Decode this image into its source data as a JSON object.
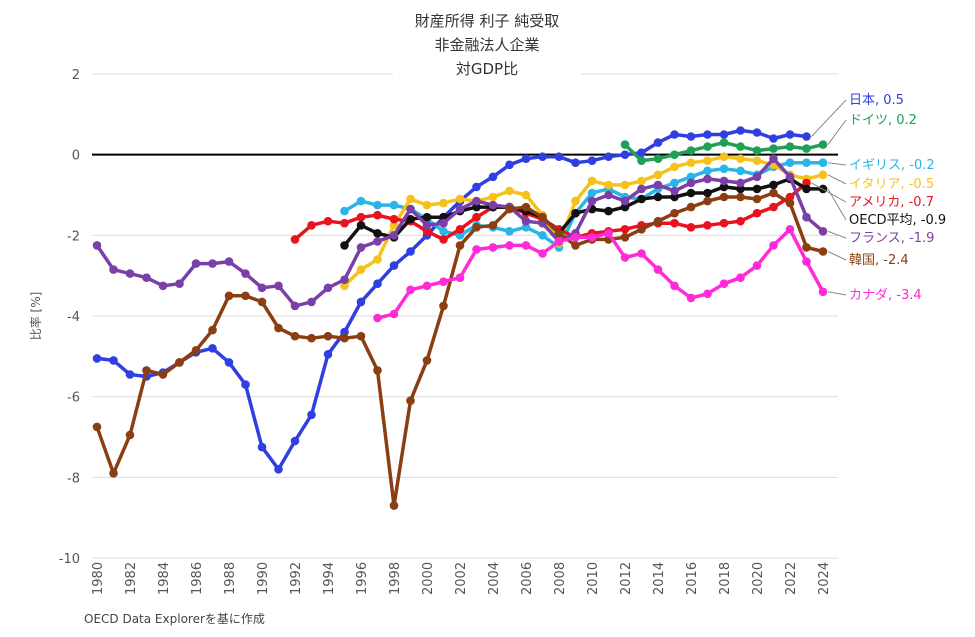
{
  "footer": "OECD Data Explorerを基に作成",
  "chart_data": {
    "type": "line",
    "title": [
      "財産所得 利子 純受取",
      "非金融法人企業",
      "対GDP比"
    ],
    "ylabel": "比率 [%]",
    "xlabel": "",
    "ylim": [
      -10,
      2
    ],
    "yticks": [
      2,
      0,
      -2,
      -4,
      -6,
      -8,
      -10
    ],
    "xlim": [
      1980,
      2024
    ],
    "xticks": [
      1980,
      1982,
      1984,
      1986,
      1988,
      1990,
      1992,
      1994,
      1996,
      1998,
      2000,
      2002,
      2004,
      2006,
      2008,
      2010,
      2012,
      2014,
      2016,
      2018,
      2020,
      2022,
      2024
    ],
    "grid": "horizontal",
    "zero_line": true,
    "series": [
      {
        "name": "日本",
        "label": "日本, 0.5",
        "color": "#2f3fe0",
        "points": [
          [
            1980,
            -5.05
          ],
          [
            1981,
            -5.1
          ],
          [
            1982,
            -5.45
          ],
          [
            1983,
            -5.5
          ],
          [
            1984,
            -5.4
          ],
          [
            1985,
            -5.15
          ],
          [
            1986,
            -4.9
          ],
          [
            1987,
            -4.8
          ],
          [
            1988,
            -5.15
          ],
          [
            1989,
            -5.7
          ],
          [
            1990,
            -7.25
          ],
          [
            1991,
            -7.8
          ],
          [
            1992,
            -7.1
          ],
          [
            1993,
            -6.45
          ],
          [
            1994,
            -4.95
          ],
          [
            1995,
            -4.4
          ],
          [
            1996,
            -3.65
          ],
          [
            1997,
            -3.2
          ],
          [
            1998,
            -2.75
          ],
          [
            1999,
            -2.4
          ],
          [
            2000,
            -2.0
          ],
          [
            2001,
            -1.55
          ],
          [
            2002,
            -1.15
          ],
          [
            2003,
            -0.8
          ],
          [
            2004,
            -0.55
          ],
          [
            2005,
            -0.25
          ],
          [
            2006,
            -0.1
          ],
          [
            2007,
            -0.05
          ],
          [
            2008,
            -0.05
          ],
          [
            2009,
            -0.2
          ],
          [
            2010,
            -0.15
          ],
          [
            2011,
            -0.05
          ],
          [
            2012,
            0.0
          ],
          [
            2013,
            0.05
          ],
          [
            2014,
            0.3
          ],
          [
            2015,
            0.5
          ],
          [
            2016,
            0.45
          ],
          [
            2017,
            0.5
          ],
          [
            2018,
            0.5
          ],
          [
            2019,
            0.6
          ],
          [
            2020,
            0.55
          ],
          [
            2021,
            0.4
          ],
          [
            2022,
            0.5
          ],
          [
            2023,
            0.45
          ]
        ]
      },
      {
        "name": "ドイツ",
        "label": "ドイツ, 0.2",
        "color": "#1fa055",
        "points": [
          [
            2012,
            0.25
          ],
          [
            2013,
            -0.15
          ],
          [
            2014,
            -0.1
          ],
          [
            2015,
            0.0
          ],
          [
            2016,
            0.1
          ],
          [
            2017,
            0.2
          ],
          [
            2018,
            0.3
          ],
          [
            2019,
            0.2
          ],
          [
            2020,
            0.1
          ],
          [
            2021,
            0.15
          ],
          [
            2022,
            0.2
          ],
          [
            2023,
            0.15
          ],
          [
            2024,
            0.25
          ]
        ]
      },
      {
        "name": "イギリス",
        "label": "イギリス, -0.2",
        "color": "#29b5e8",
        "points": [
          [
            1995,
            -1.4
          ],
          [
            1996,
            -1.15
          ],
          [
            1997,
            -1.25
          ],
          [
            1998,
            -1.25
          ],
          [
            1999,
            -1.35
          ],
          [
            2000,
            -1.6
          ],
          [
            2001,
            -1.9
          ],
          [
            2002,
            -2.0
          ],
          [
            2003,
            -1.75
          ],
          [
            2004,
            -1.8
          ],
          [
            2005,
            -1.9
          ],
          [
            2006,
            -1.8
          ],
          [
            2007,
            -2.0
          ],
          [
            2008,
            -2.3
          ],
          [
            2009,
            -1.45
          ],
          [
            2010,
            -0.95
          ],
          [
            2011,
            -0.85
          ],
          [
            2012,
            -1.05
          ],
          [
            2013,
            -1.1
          ],
          [
            2014,
            -0.85
          ],
          [
            2015,
            -0.7
          ],
          [
            2016,
            -0.55
          ],
          [
            2017,
            -0.4
          ],
          [
            2018,
            -0.35
          ],
          [
            2019,
            -0.4
          ],
          [
            2020,
            -0.5
          ],
          [
            2021,
            -0.3
          ],
          [
            2022,
            -0.2
          ],
          [
            2023,
            -0.2
          ],
          [
            2024,
            -0.2
          ]
        ]
      },
      {
        "name": "イタリア",
        "label": "イタリア, -0.5",
        "color": "#f5c21b",
        "points": [
          [
            1995,
            -3.25
          ],
          [
            1996,
            -2.85
          ],
          [
            1997,
            -2.6
          ],
          [
            1998,
            -1.75
          ],
          [
            1999,
            -1.1
          ],
          [
            2000,
            -1.25
          ],
          [
            2001,
            -1.2
          ],
          [
            2002,
            -1.1
          ],
          [
            2003,
            -1.15
          ],
          [
            2004,
            -1.05
          ],
          [
            2005,
            -0.9
          ],
          [
            2006,
            -1.0
          ],
          [
            2007,
            -1.5
          ],
          [
            2008,
            -2.2
          ],
          [
            2009,
            -1.15
          ],
          [
            2010,
            -0.65
          ],
          [
            2011,
            -0.75
          ],
          [
            2012,
            -0.75
          ],
          [
            2013,
            -0.65
          ],
          [
            2014,
            -0.5
          ],
          [
            2015,
            -0.3
          ],
          [
            2016,
            -0.2
          ],
          [
            2017,
            -0.15
          ],
          [
            2018,
            -0.05
          ],
          [
            2019,
            -0.1
          ],
          [
            2020,
            -0.15
          ],
          [
            2021,
            -0.25
          ],
          [
            2022,
            -0.5
          ],
          [
            2023,
            -0.6
          ],
          [
            2024,
            -0.5
          ]
        ]
      },
      {
        "name": "アメリカ",
        "label": "アメリカ, -0.7",
        "color": "#e8131f",
        "points": [
          [
            1992,
            -2.1
          ],
          [
            1993,
            -1.75
          ],
          [
            1994,
            -1.65
          ],
          [
            1995,
            -1.7
          ],
          [
            1996,
            -1.55
          ],
          [
            1997,
            -1.5
          ],
          [
            1998,
            -1.6
          ],
          [
            1999,
            -1.65
          ],
          [
            2000,
            -1.9
          ],
          [
            2001,
            -2.1
          ],
          [
            2002,
            -1.85
          ],
          [
            2003,
            -1.55
          ],
          [
            2004,
            -1.3
          ],
          [
            2005,
            -1.3
          ],
          [
            2006,
            -1.45
          ],
          [
            2007,
            -1.6
          ],
          [
            2008,
            -1.85
          ],
          [
            2009,
            -2.05
          ],
          [
            2010,
            -1.95
          ],
          [
            2011,
            -1.9
          ],
          [
            2012,
            -1.85
          ],
          [
            2013,
            -1.75
          ],
          [
            2014,
            -1.7
          ],
          [
            2015,
            -1.7
          ],
          [
            2016,
            -1.8
          ],
          [
            2017,
            -1.75
          ],
          [
            2018,
            -1.7
          ],
          [
            2019,
            -1.65
          ],
          [
            2020,
            -1.45
          ],
          [
            2021,
            -1.3
          ],
          [
            2022,
            -1.05
          ],
          [
            2023,
            -0.7
          ]
        ]
      },
      {
        "name": "OECD平均",
        "label": "OECD平均, -0.9",
        "color": "#111111",
        "points": [
          [
            1995,
            -2.25
          ],
          [
            1996,
            -1.75
          ],
          [
            1997,
            -1.95
          ],
          [
            1998,
            -2.05
          ],
          [
            1999,
            -1.6
          ],
          [
            2000,
            -1.55
          ],
          [
            2001,
            -1.55
          ],
          [
            2002,
            -1.4
          ],
          [
            2003,
            -1.3
          ],
          [
            2004,
            -1.3
          ],
          [
            2005,
            -1.3
          ],
          [
            2006,
            -1.4
          ],
          [
            2007,
            -1.55
          ],
          [
            2008,
            -1.95
          ],
          [
            2009,
            -1.45
          ],
          [
            2010,
            -1.35
          ],
          [
            2011,
            -1.4
          ],
          [
            2012,
            -1.3
          ],
          [
            2013,
            -1.1
          ],
          [
            2014,
            -1.05
          ],
          [
            2015,
            -1.05
          ],
          [
            2016,
            -0.95
          ],
          [
            2017,
            -0.95
          ],
          [
            2018,
            -0.8
          ],
          [
            2019,
            -0.85
          ],
          [
            2020,
            -0.85
          ],
          [
            2021,
            -0.75
          ],
          [
            2022,
            -0.6
          ],
          [
            2023,
            -0.85
          ],
          [
            2024,
            -0.85
          ]
        ]
      },
      {
        "name": "フランス",
        "label": "フランス, -1.9",
        "color": "#7b3fa8",
        "points": [
          [
            1980,
            -2.25
          ],
          [
            1981,
            -2.85
          ],
          [
            1982,
            -2.95
          ],
          [
            1983,
            -3.05
          ],
          [
            1984,
            -3.25
          ],
          [
            1985,
            -3.2
          ],
          [
            1986,
            -2.7
          ],
          [
            1987,
            -2.7
          ],
          [
            1988,
            -2.65
          ],
          [
            1989,
            -2.95
          ],
          [
            1990,
            -3.3
          ],
          [
            1991,
            -3.25
          ],
          [
            1992,
            -3.75
          ],
          [
            1993,
            -3.65
          ],
          [
            1994,
            -3.3
          ],
          [
            1995,
            -3.1
          ],
          [
            1996,
            -2.3
          ],
          [
            1997,
            -2.15
          ],
          [
            1998,
            -2.0
          ],
          [
            1999,
            -1.35
          ],
          [
            2000,
            -1.75
          ],
          [
            2001,
            -1.7
          ],
          [
            2002,
            -1.35
          ],
          [
            2003,
            -1.15
          ],
          [
            2004,
            -1.25
          ],
          [
            2005,
            -1.3
          ],
          [
            2006,
            -1.65
          ],
          [
            2007,
            -1.7
          ],
          [
            2008,
            -2.15
          ],
          [
            2009,
            -1.95
          ],
          [
            2010,
            -1.15
          ],
          [
            2011,
            -1.0
          ],
          [
            2012,
            -1.15
          ],
          [
            2013,
            -0.85
          ],
          [
            2014,
            -0.75
          ],
          [
            2015,
            -0.9
          ],
          [
            2016,
            -0.7
          ],
          [
            2017,
            -0.6
          ],
          [
            2018,
            -0.65
          ],
          [
            2019,
            -0.7
          ],
          [
            2020,
            -0.55
          ],
          [
            2021,
            -0.1
          ],
          [
            2022,
            -0.55
          ],
          [
            2023,
            -1.55
          ],
          [
            2024,
            -1.9
          ]
        ]
      },
      {
        "name": "韓国",
        "label": "韓国, -2.4",
        "color": "#8b3e12",
        "points": [
          [
            1980,
            -6.75
          ],
          [
            1981,
            -7.9
          ],
          [
            1982,
            -6.95
          ],
          [
            1983,
            -5.35
          ],
          [
            1984,
            -5.45
          ],
          [
            1985,
            -5.15
          ],
          [
            1986,
            -4.85
          ],
          [
            1987,
            -4.35
          ],
          [
            1988,
            -3.5
          ],
          [
            1989,
            -3.5
          ],
          [
            1990,
            -3.65
          ],
          [
            1991,
            -4.3
          ],
          [
            1992,
            -4.5
          ],
          [
            1993,
            -4.55
          ],
          [
            1994,
            -4.5
          ],
          [
            1995,
            -4.55
          ],
          [
            1996,
            -4.5
          ],
          [
            1997,
            -5.35
          ],
          [
            1998,
            -8.7
          ],
          [
            1999,
            -6.1
          ],
          [
            2000,
            -5.1
          ],
          [
            2001,
            -3.75
          ],
          [
            2002,
            -2.25
          ],
          [
            2003,
            -1.8
          ],
          [
            2004,
            -1.75
          ],
          [
            2005,
            -1.35
          ],
          [
            2006,
            -1.3
          ],
          [
            2007,
            -1.55
          ],
          [
            2008,
            -1.95
          ],
          [
            2009,
            -2.25
          ],
          [
            2010,
            -2.1
          ],
          [
            2011,
            -2.1
          ],
          [
            2012,
            -2.05
          ],
          [
            2013,
            -1.85
          ],
          [
            2014,
            -1.65
          ],
          [
            2015,
            -1.45
          ],
          [
            2016,
            -1.3
          ],
          [
            2017,
            -1.15
          ],
          [
            2018,
            -1.05
          ],
          [
            2019,
            -1.05
          ],
          [
            2020,
            -1.1
          ],
          [
            2021,
            -0.95
          ],
          [
            2022,
            -1.2
          ],
          [
            2023,
            -2.3
          ],
          [
            2024,
            -2.4
          ]
        ]
      },
      {
        "name": "カナダ",
        "label": "カナダ, -3.4",
        "color": "#ff2ad8",
        "points": [
          [
            1997,
            -4.05
          ],
          [
            1998,
            -3.95
          ],
          [
            1999,
            -3.35
          ],
          [
            2000,
            -3.25
          ],
          [
            2001,
            -3.15
          ],
          [
            2002,
            -3.05
          ],
          [
            2003,
            -2.35
          ],
          [
            2004,
            -2.3
          ],
          [
            2005,
            -2.25
          ],
          [
            2006,
            -2.25
          ],
          [
            2007,
            -2.45
          ],
          [
            2008,
            -2.15
          ],
          [
            2009,
            -2.05
          ],
          [
            2010,
            -2.05
          ],
          [
            2011,
            -1.95
          ],
          [
            2012,
            -2.55
          ],
          [
            2013,
            -2.45
          ],
          [
            2014,
            -2.85
          ],
          [
            2015,
            -3.25
          ],
          [
            2016,
            -3.55
          ],
          [
            2017,
            -3.45
          ],
          [
            2018,
            -3.2
          ],
          [
            2019,
            -3.05
          ],
          [
            2020,
            -2.75
          ],
          [
            2021,
            -2.25
          ],
          [
            2022,
            -1.85
          ],
          [
            2023,
            -2.65
          ],
          [
            2024,
            -3.4
          ]
        ]
      }
    ]
  }
}
